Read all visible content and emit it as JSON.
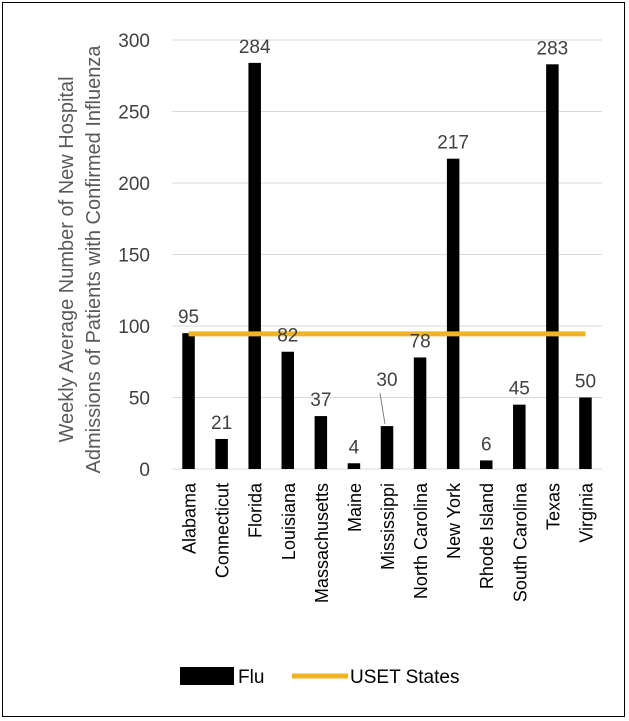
{
  "chart_data": {
    "type": "bar",
    "title": "",
    "xlabel": "",
    "ylabel": "Weekly Average Number of New Hospital Admissions of Patients with Confirmed Influenza",
    "ylabel_lines": [
      "Weekly Average Number of New Hospital",
      "Admissions of Patients with Confirmed Influenza"
    ],
    "ylim": [
      0,
      300
    ],
    "yticks": [
      0,
      50,
      100,
      150,
      200,
      250,
      300
    ],
    "grid": true,
    "legend_position": "bottom",
    "categories": [
      "Alabama",
      "Connecticut",
      "Florida",
      "Louisiana",
      "Massachusetts",
      "Maine",
      "Mississippi",
      "North Carolina",
      "New York",
      "Rhode Island",
      "South Carolina",
      "Texas",
      "Virginia"
    ],
    "series": [
      {
        "name": "Flu",
        "type": "bar",
        "color": "#000000",
        "values": [
          95,
          21,
          284,
          82,
          37,
          4,
          30,
          78,
          217,
          6,
          45,
          283,
          50
        ],
        "data_labels": [
          "95",
          "21",
          "284",
          "82",
          "37",
          "4",
          "30",
          "78",
          "217",
          "6",
          "45",
          "283",
          "50"
        ]
      },
      {
        "name": "USET States",
        "type": "line",
        "color": "#f0b323",
        "value": 94.5
      }
    ]
  }
}
